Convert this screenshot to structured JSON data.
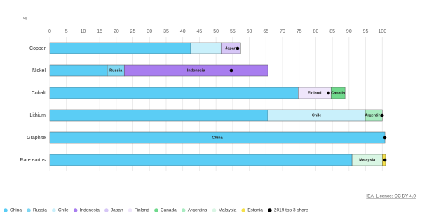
{
  "chart_data": {
    "type": "stacked-bar-horizontal",
    "axis_label": "%",
    "source": "IEA. Licence: CC BY 4.0",
    "categories": [
      "Copper",
      "Nickel",
      "Cobalt",
      "Lithium",
      "Graphite",
      "Rare earths"
    ],
    "xlim": [
      0,
      101
    ],
    "xticks": [
      0,
      5,
      10,
      15,
      20,
      25,
      30,
      35,
      40,
      45,
      50,
      55,
      60,
      65,
      70,
      75,
      80,
      85,
      90,
      95,
      100
    ],
    "grid": true,
    "series": [
      {
        "name": "China",
        "color": "#5bcdf5",
        "values": [
          42.4,
          17.3,
          74.7,
          65.6,
          100.8,
          90.9
        ],
        "labeled_categories": [
          4
        ]
      },
      {
        "name": "Russia",
        "color": "#7fd6f2",
        "values": [
          null,
          5.1,
          null,
          null,
          null,
          null
        ],
        "labeled_categories": [
          1
        ]
      },
      {
        "name": "Chile",
        "color": "#c9f0fb",
        "values": [
          9.1,
          null,
          null,
          29.3,
          null,
          null
        ],
        "labeled_categories": [
          3
        ]
      },
      {
        "name": "Indonesia",
        "color": "#a87def",
        "values": [
          null,
          43.2,
          null,
          null,
          null,
          null
        ],
        "labeled_categories": [
          1
        ]
      },
      {
        "name": "Japan",
        "color": "#d6c6f6",
        "values": [
          5.9,
          null,
          null,
          null,
          null,
          null
        ],
        "labeled_categories": [
          0
        ]
      },
      {
        "name": "Finland",
        "color": "#efe6fb",
        "values": [
          null,
          null,
          9.9,
          null,
          null,
          null
        ],
        "labeled_categories": [
          2
        ]
      },
      {
        "name": "Canada",
        "color": "#6fd98c",
        "values": [
          null,
          null,
          4.2,
          null,
          null,
          null
        ],
        "labeled_categories": [
          2
        ]
      },
      {
        "name": "Argentina",
        "color": "#a9ecc1",
        "values": [
          null,
          null,
          null,
          5.1,
          null,
          null
        ],
        "labeled_categories": [
          3
        ]
      },
      {
        "name": "Malaysia",
        "color": "#d9f6e4",
        "values": [
          null,
          null,
          null,
          null,
          null,
          9.1
        ],
        "labeled_categories": [
          5
        ]
      },
      {
        "name": "Estonia",
        "color": "#f5e14a",
        "values": [
          null,
          null,
          null,
          null,
          null,
          1.0
        ],
        "labeled_categories": []
      }
    ],
    "top3_share": {
      "name": "2019 top 3 share",
      "color": "#000000",
      "values": [
        56.5,
        54.6,
        83.8,
        100,
        100.8,
        100.8
      ]
    }
  }
}
